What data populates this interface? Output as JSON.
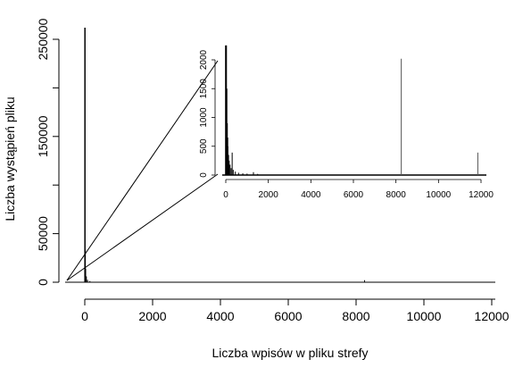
{
  "chart_data": [
    {
      "type": "bar",
      "role": "main",
      "xlabel": "Liczba wpisów w pliku strefy",
      "ylabel": "Liczba wystąpień pliku",
      "xlim": [
        -500,
        12000
      ],
      "ylim": [
        0,
        250000
      ],
      "xticks": [
        0,
        2000,
        4000,
        6000,
        8000,
        10000,
        12000
      ],
      "yticks": [
        0,
        50000,
        150000,
        250000
      ],
      "grid": false,
      "points": [
        {
          "x": 5,
          "y": 262000
        },
        {
          "x": 10,
          "y": 33000
        },
        {
          "x": 20,
          "y": 14000
        },
        {
          "x": 40,
          "y": 6000
        },
        {
          "x": 80,
          "y": 2500
        },
        {
          "x": 150,
          "y": 1200
        },
        {
          "x": 8250,
          "y": 2100
        },
        {
          "x": 11850,
          "y": 400
        }
      ]
    },
    {
      "type": "bar",
      "role": "inset",
      "xlim": [
        0,
        12000
      ],
      "ylim": [
        0,
        2000
      ],
      "xticks": [
        0,
        2000,
        4000,
        6000,
        8000,
        10000,
        12000
      ],
      "yticks": [
        0,
        500,
        1000,
        1500,
        2000
      ],
      "grid": false,
      "points": [
        {
          "x": 0,
          "y": 2250
        },
        {
          "x": 20,
          "y": 2250
        },
        {
          "x": 40,
          "y": 1500
        },
        {
          "x": 60,
          "y": 900
        },
        {
          "x": 80,
          "y": 650
        },
        {
          "x": 100,
          "y": 500
        },
        {
          "x": 130,
          "y": 350
        },
        {
          "x": 160,
          "y": 250
        },
        {
          "x": 200,
          "y": 180
        },
        {
          "x": 250,
          "y": 120
        },
        {
          "x": 300,
          "y": 390
        },
        {
          "x": 350,
          "y": 90
        },
        {
          "x": 450,
          "y": 60
        },
        {
          "x": 600,
          "y": 40
        },
        {
          "x": 800,
          "y": 30
        },
        {
          "x": 1000,
          "y": 25
        },
        {
          "x": 1300,
          "y": 50
        },
        {
          "x": 1500,
          "y": 20
        },
        {
          "x": 8250,
          "y": 2020
        },
        {
          "x": 11850,
          "y": 390
        }
      ]
    }
  ]
}
